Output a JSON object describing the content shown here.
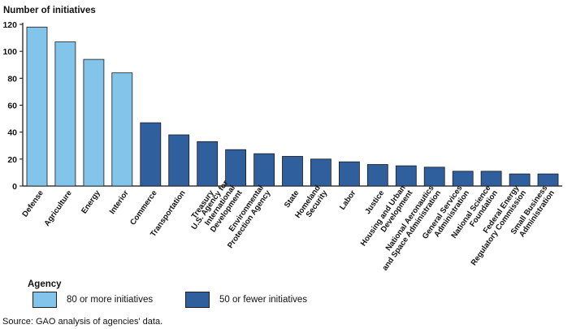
{
  "chart_data": {
    "type": "bar",
    "ylabel": "Number of initiatives",
    "ylim": [
      0,
      120
    ],
    "yticks": [
      0,
      20,
      40,
      60,
      80,
      100,
      120
    ],
    "grid": false,
    "categories": [
      "Defense",
      "Agriculture",
      "Energy",
      "Interior",
      "Commerce",
      "Transportation",
      "Treasury",
      "U.S. Agency for International Development",
      "Environmental Protection Agency",
      "State",
      "Homeland Security",
      "Labor",
      "Justice",
      "Housing and Urban Development",
      "National Aeronautics and Space Administration",
      "General Services Administration",
      "National Science Foundation",
      "Federal Energy Regulatory Commission",
      "Small Business Administration"
    ],
    "category_lines": [
      [
        "Defense"
      ],
      [
        "Agriculture"
      ],
      [
        "Energy"
      ],
      [
        "Interior"
      ],
      [
        "Commerce"
      ],
      [
        "Transportation"
      ],
      [
        "Treasury"
      ],
      [
        "U.S. Agency for",
        "International",
        "Development"
      ],
      [
        "Environmental",
        "Protection Agency"
      ],
      [
        "State"
      ],
      [
        "Homeland",
        "Security"
      ],
      [
        "Labor"
      ],
      [
        "Justice"
      ],
      [
        "Housing and Urban",
        "Development"
      ],
      [
        "National Aeronautics",
        "and Space Administration"
      ],
      [
        "General Services",
        "Administration"
      ],
      [
        "National Science",
        "Foundation"
      ],
      [
        "Federal Energy",
        "Regulatory Commission"
      ],
      [
        "Small Business",
        "Administration"
      ]
    ],
    "values": [
      118,
      107,
      94,
      84,
      47,
      38,
      33,
      27,
      24,
      22,
      20,
      18,
      16,
      15,
      14,
      11,
      11,
      9,
      9
    ],
    "groups": [
      0,
      0,
      0,
      0,
      1,
      1,
      1,
      1,
      1,
      1,
      1,
      1,
      1,
      1,
      1,
      1,
      1,
      1,
      1
    ],
    "colors": [
      "#82c4ea",
      "#2f5f9c"
    ]
  },
  "legend": {
    "title": "Agency",
    "placement": "bottom-left",
    "items": [
      {
        "label": "80 or more initiatives",
        "color": "#82c4ea"
      },
      {
        "label": "50 or fewer initiatives",
        "color": "#2f5f9c"
      }
    ]
  },
  "source": "Source: GAO analysis of agencies' data."
}
